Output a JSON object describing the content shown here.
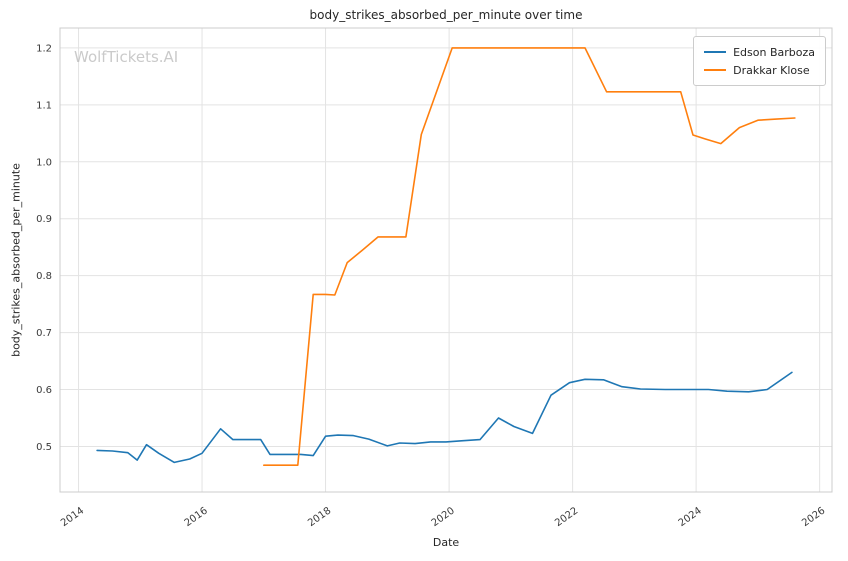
{
  "chart_data": {
    "type": "line",
    "title": "body_strikes_absorbed_per_minute over time",
    "xlabel": "Date",
    "ylabel": "body_strikes_absorbed_per_minute",
    "watermark": "WolfTickets.AI",
    "xlim": [
      2013.7,
      2026.2
    ],
    "ylim": [
      0.42,
      1.235
    ],
    "xticks": [
      2014,
      2016,
      2018,
      2020,
      2022,
      2024,
      2026
    ],
    "yticks": [
      0.5,
      0.6,
      0.7,
      0.8,
      0.9,
      1.0,
      1.1,
      1.2
    ],
    "grid": true,
    "legend_position": "upper right",
    "series": [
      {
        "name": "Edson Barboza",
        "color": "#1f77b4",
        "x": [
          2014.3,
          2014.55,
          2014.8,
          2014.95,
          2015.1,
          2015.3,
          2015.55,
          2015.8,
          2016.0,
          2016.3,
          2016.5,
          2016.75,
          2016.95,
          2017.1,
          2017.35,
          2017.6,
          2017.8,
          2018.0,
          2018.2,
          2018.45,
          2018.7,
          2019.0,
          2019.2,
          2019.45,
          2019.7,
          2019.95,
          2020.2,
          2020.5,
          2020.8,
          2021.05,
          2021.35,
          2021.65,
          2021.95,
          2022.2,
          2022.5,
          2022.8,
          2023.1,
          2023.5,
          2023.9,
          2024.2,
          2024.5,
          2024.85,
          2025.15,
          2025.55
        ],
        "y": [
          0.493,
          0.492,
          0.489,
          0.476,
          0.503,
          0.488,
          0.472,
          0.478,
          0.488,
          0.531,
          0.512,
          0.512,
          0.512,
          0.486,
          0.486,
          0.486,
          0.484,
          0.518,
          0.52,
          0.519,
          0.513,
          0.501,
          0.506,
          0.505,
          0.508,
          0.508,
          0.51,
          0.512,
          0.55,
          0.535,
          0.523,
          0.59,
          0.612,
          0.618,
          0.617,
          0.605,
          0.601,
          0.6,
          0.6,
          0.6,
          0.597,
          0.596,
          0.6,
          0.63
        ]
      },
      {
        "name": "Drakkar Klose",
        "color": "#ff7f0e",
        "x": [
          2017.0,
          2017.3,
          2017.55,
          2017.8,
          2018.0,
          2018.15,
          2018.35,
          2018.6,
          2018.85,
          2019.05,
          2019.3,
          2019.55,
          2020.05,
          2020.3,
          2020.7,
          2021.1,
          2021.5,
          2021.9,
          2022.2,
          2022.55,
          2022.9,
          2023.3,
          2023.75,
          2023.95,
          2024.15,
          2024.4,
          2024.7,
          2025.0,
          2025.3,
          2025.6
        ],
        "y": [
          0.467,
          0.467,
          0.467,
          0.767,
          0.767,
          0.766,
          0.823,
          0.845,
          0.868,
          0.868,
          0.868,
          1.048,
          1.2,
          1.2,
          1.2,
          1.2,
          1.2,
          1.2,
          1.2,
          1.123,
          1.123,
          1.123,
          1.123,
          1.047,
          1.04,
          1.032,
          1.06,
          1.073,
          1.075,
          1.077
        ]
      }
    ]
  }
}
